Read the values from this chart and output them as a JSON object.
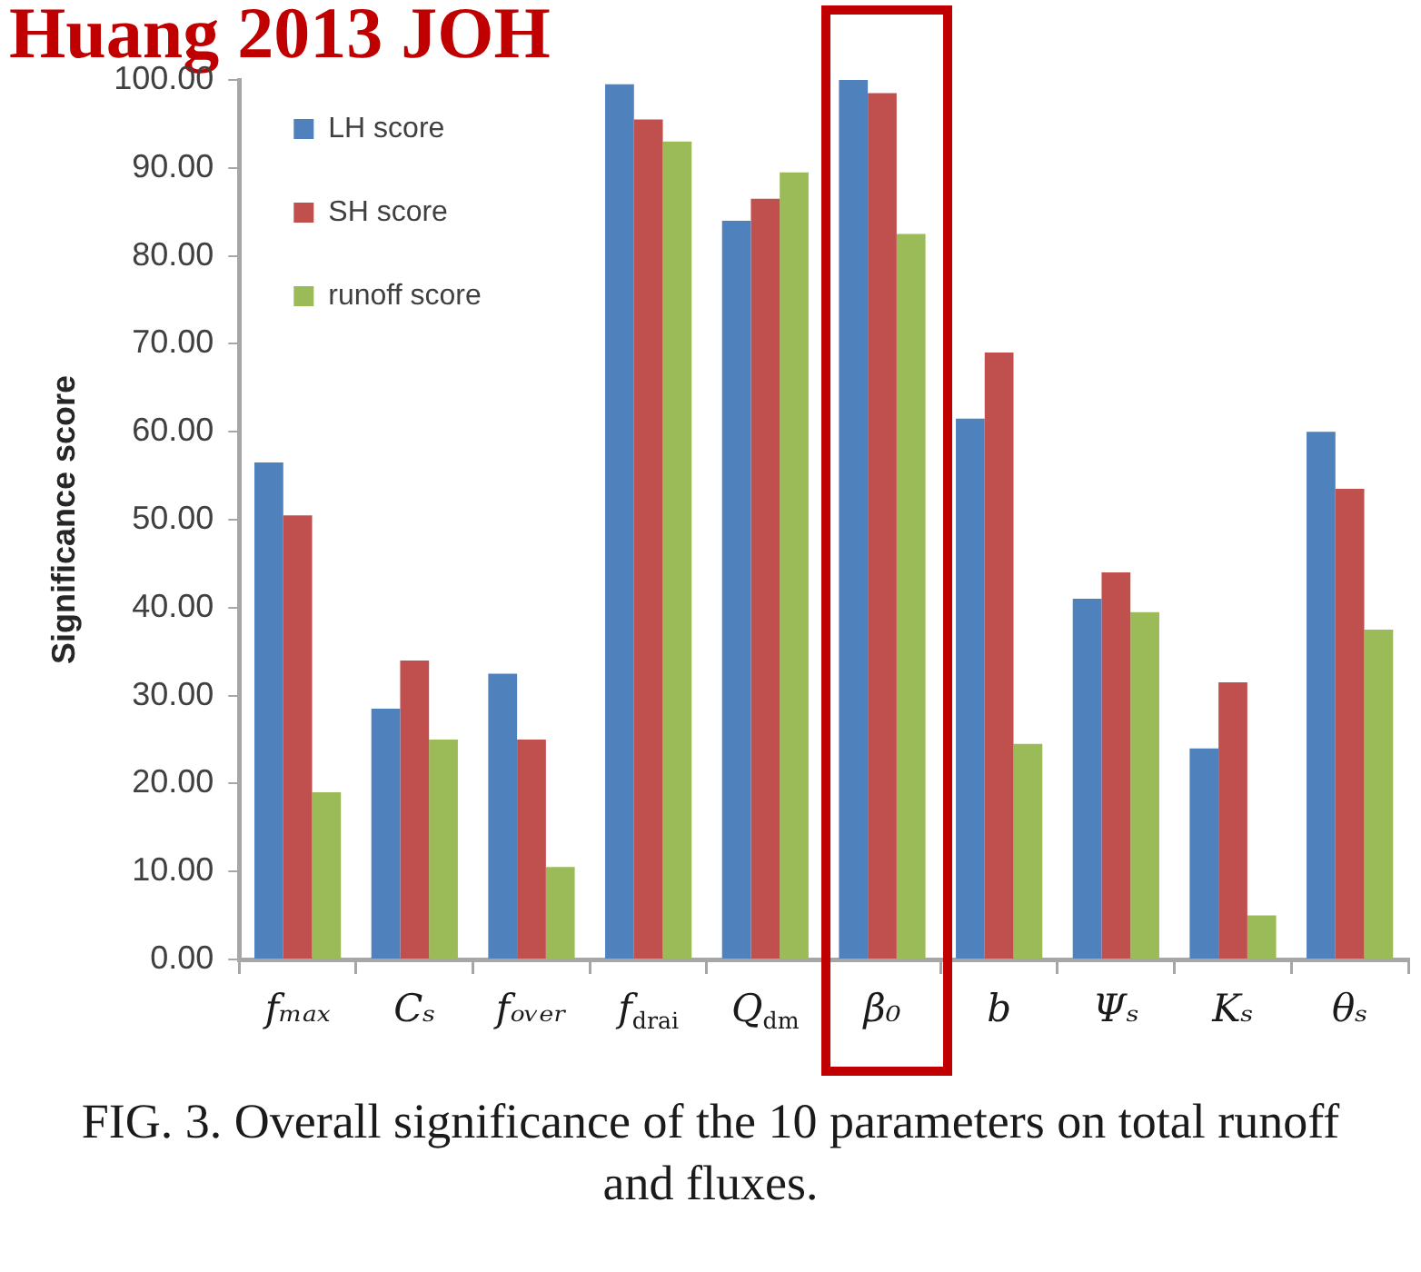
{
  "chart_data": {
    "type": "bar",
    "title": "Huang 2013 JOH",
    "ylabel": "Significance score",
    "categories": [
      "fₘₐₓ",
      "Cₛ",
      "fₒᵥₑᵣ",
      "f$_{drai}$",
      "Q$_{dm}$",
      "β₀",
      "b",
      "Ψₛ",
      "Kₛ",
      "θₛ"
    ],
    "series": [
      {
        "name": "LH score",
        "color": "#4f81bd",
        "values": [
          56.5,
          28.5,
          32.5,
          99.5,
          84,
          100,
          61.5,
          41,
          24,
          60
        ]
      },
      {
        "name": "SH score",
        "color": "#c0504d",
        "values": [
          50.5,
          34,
          25,
          95.5,
          86.5,
          98.5,
          69,
          44,
          31.5,
          53.5
        ]
      },
      {
        "name": "runoff score",
        "color": "#9bbb59",
        "values": [
          19,
          25,
          10.5,
          93,
          89.5,
          82.5,
          24.5,
          39.5,
          5,
          37.5
        ]
      }
    ],
    "ylim": [
      0,
      100
    ],
    "yticks": [
      {
        "value": 0,
        "label": "0.00"
      },
      {
        "value": 10,
        "label": "10.00"
      },
      {
        "value": 20,
        "label": "20.00"
      },
      {
        "value": 30,
        "label": "30.00"
      },
      {
        "value": 40,
        "label": "40.00"
      },
      {
        "value": 50,
        "label": "50.00"
      },
      {
        "value": 60,
        "label": "60.00"
      },
      {
        "value": 70,
        "label": "70.00"
      },
      {
        "value": 80,
        "label": "80.00"
      },
      {
        "value": 90,
        "label": "90.00"
      },
      {
        "value": 100,
        "label": "100.00"
      }
    ],
    "grid": false,
    "legend": "top left",
    "annotations": [
      "FIG. 3. Overall significance of the 10 parameters on total runoff and fluxes."
    ]
  }
}
